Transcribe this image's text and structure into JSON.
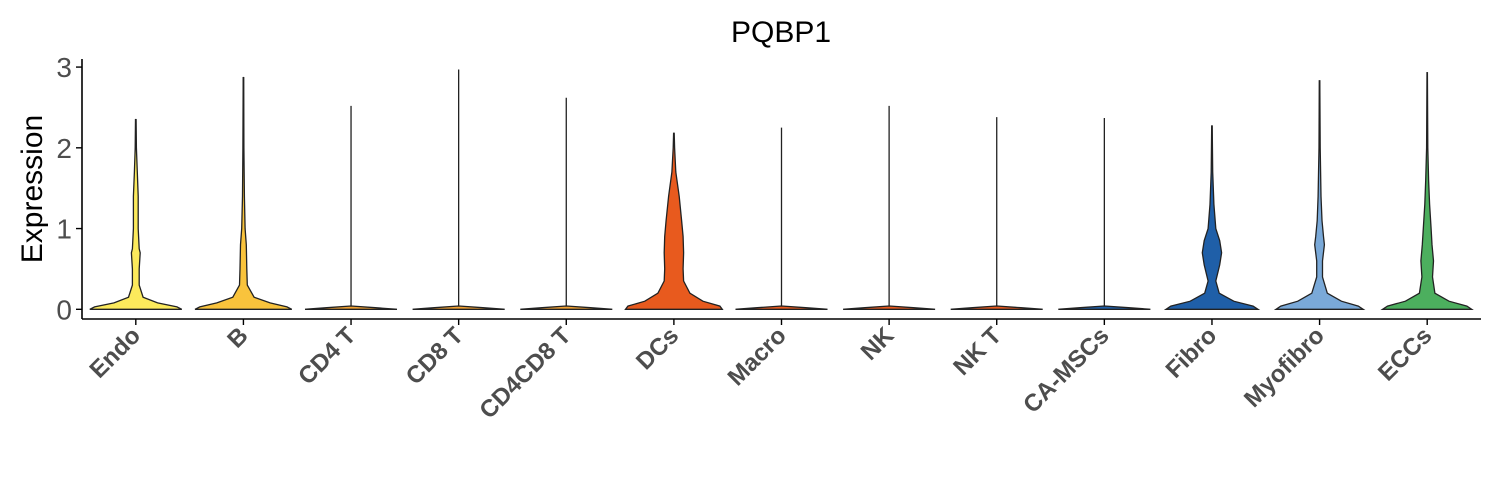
{
  "chart_data": {
    "type": "violin",
    "title": "PQBP1",
    "xlabel": "",
    "ylabel": "Expression",
    "ylim": [
      -0.12,
      3.1
    ],
    "yticks": [
      "0",
      "1",
      "2",
      "3"
    ],
    "categories": [
      "Endo",
      "B",
      "CD4 T",
      "CD8 T",
      "CD4CD8 T",
      "DCs",
      "Macro",
      "NK",
      "NK T",
      "CA-MSCs",
      "Fibro",
      "Myofibro",
      "ECCs"
    ],
    "colors": [
      "#FCEA5C",
      "#F9C33C",
      "#F0A032",
      "#F0A032",
      "#F0A032",
      "#E85A1E",
      "#E85A1E",
      "#E85A1E",
      "#E85A1E",
      "#1F5FA8",
      "#1F5FA8",
      "#7AA9D8",
      "#4CAF5E"
    ],
    "max_values": [
      2.35,
      2.87,
      2.52,
      2.97,
      2.62,
      2.18,
      2.25,
      2.52,
      2.38,
      2.37,
      2.27,
      2.83,
      2.93
    ],
    "legend": "none",
    "grid": false
  }
}
